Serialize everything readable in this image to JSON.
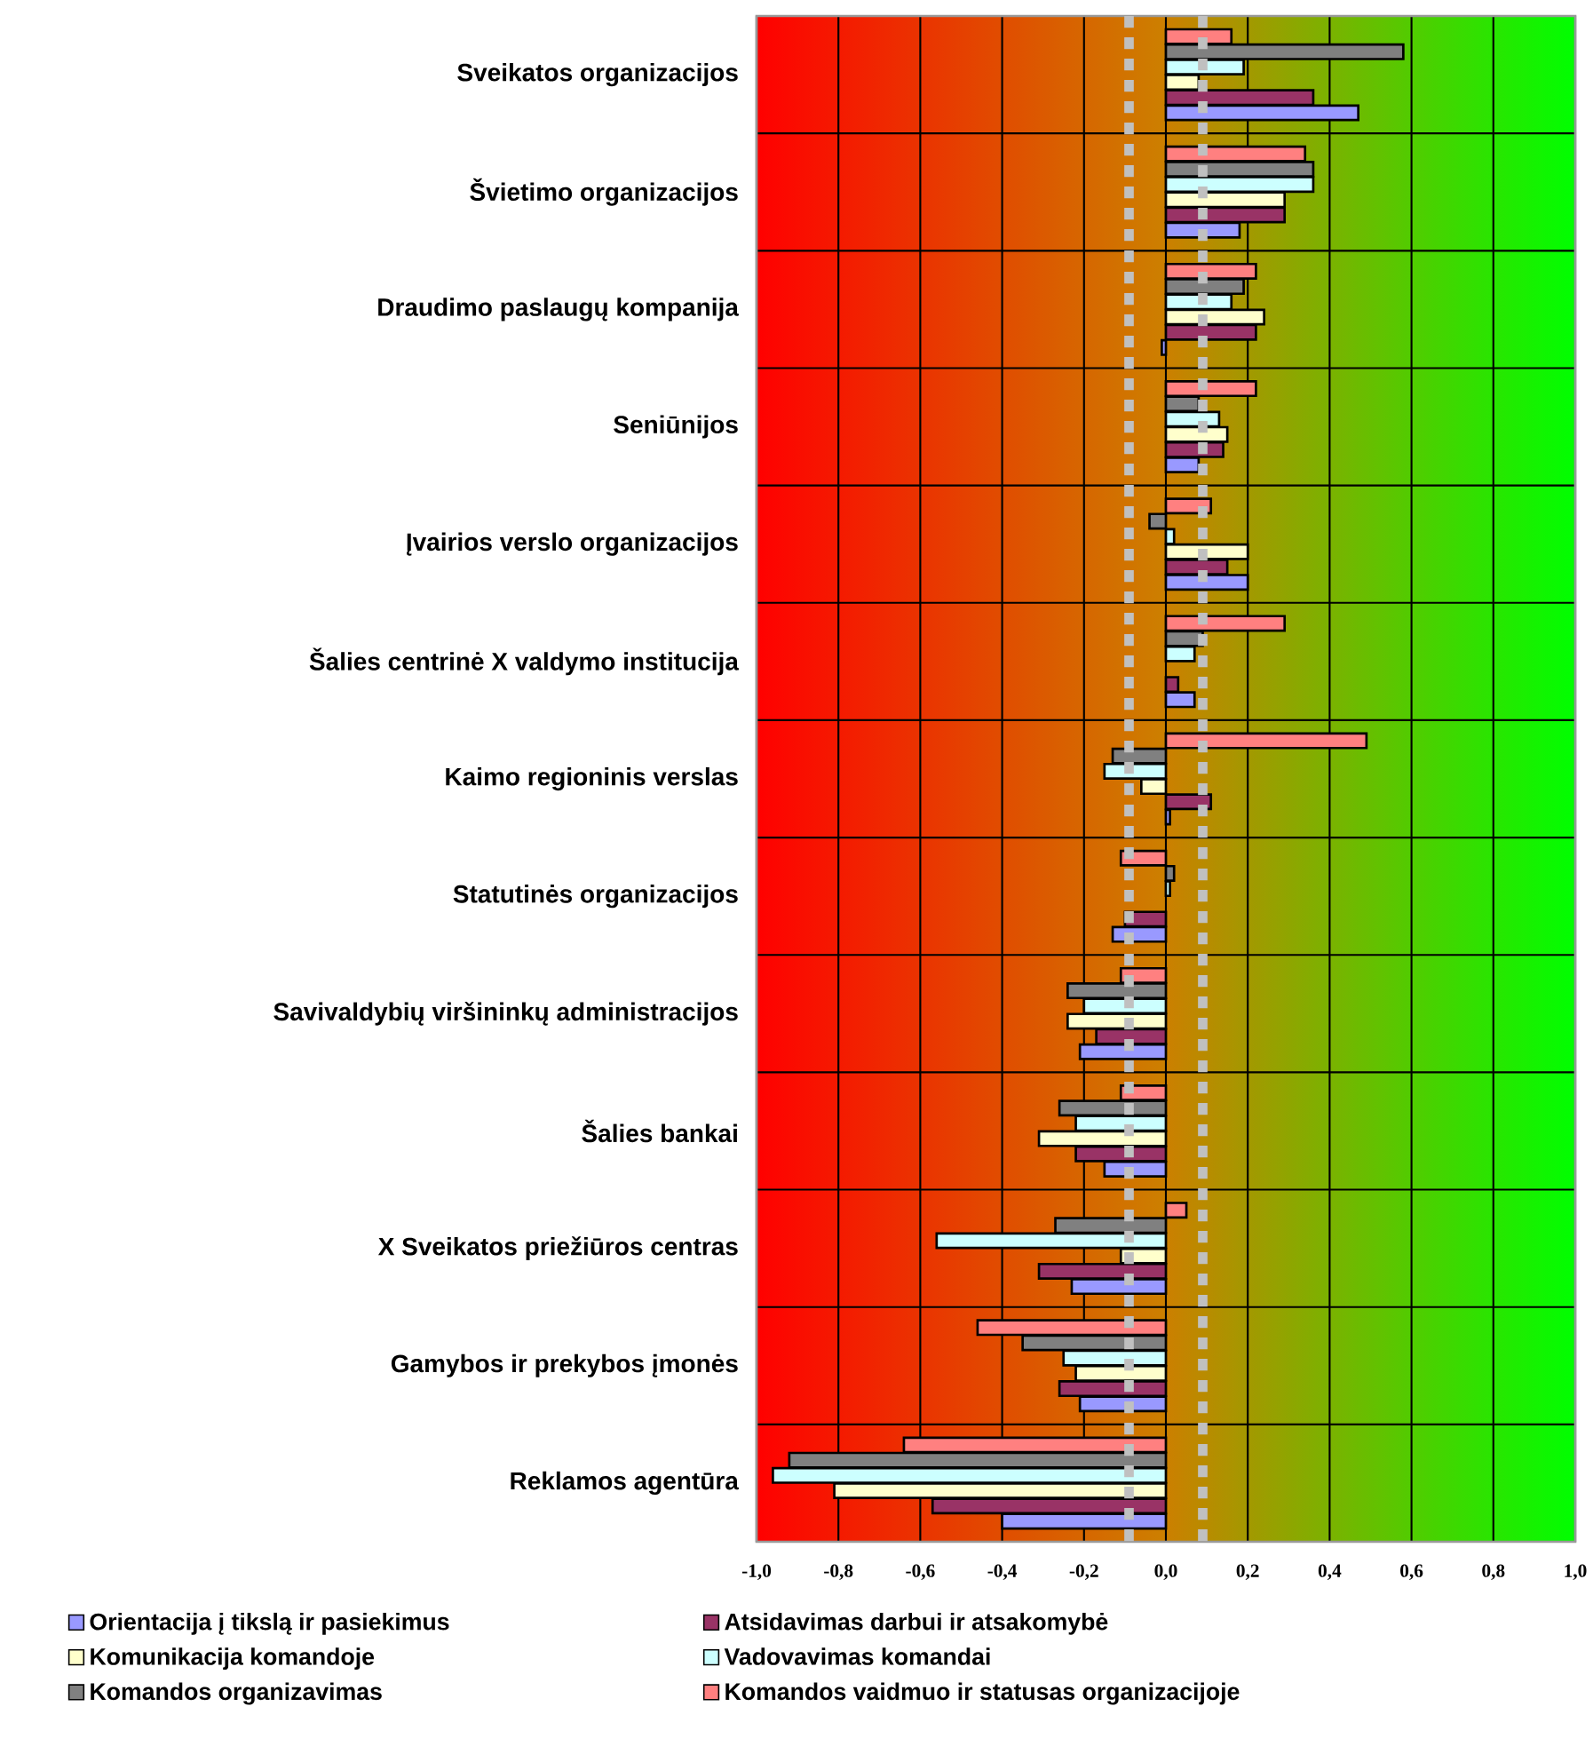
{
  "chart_data": {
    "type": "bar",
    "orientation": "horizontal",
    "categories": [
      "Sveikatos organizacijos",
      "Švietimo organizacijos",
      "Draudimo paslaugų kompanija",
      "Seniūnijos",
      "Įvairios verslo organizacijos",
      "Šalies centrinė X valdymo institucija",
      "Kaimo regioninis verslas",
      "Statutinės organizacijos",
      "Savivaldybių viršininkų administracijos",
      "Šalies bankai",
      "X Sveikatos priežiūros centras",
      "Gamybos ir prekybos įmonės",
      "Reklamos agentūra"
    ],
    "series": [
      {
        "name": "Orientacija į tikslą ir pasiekimus",
        "color": "#9999ff",
        "values": [
          0.47,
          0.18,
          -0.01,
          0.08,
          0.2,
          0.07,
          0.01,
          -0.13,
          -0.21,
          -0.15,
          -0.23,
          -0.21,
          -0.4
        ]
      },
      {
        "name": "Atsidavimas darbui ir atsakomybė",
        "color": "#993366",
        "values": [
          0.36,
          0.29,
          0.22,
          0.14,
          0.15,
          0.03,
          0.11,
          -0.1,
          -0.17,
          -0.22,
          -0.31,
          -0.26,
          -0.57
        ]
      },
      {
        "name": "Komunikacija komandoje",
        "color": "#ffffcc",
        "values": [
          0.08,
          0.29,
          0.24,
          0.15,
          0.2,
          null,
          -0.06,
          null,
          -0.24,
          -0.31,
          -0.11,
          -0.22,
          -0.81
        ]
      },
      {
        "name": "Vadovavimas komandai",
        "color": "#ccffff",
        "values": [
          0.19,
          0.36,
          0.16,
          0.13,
          0.02,
          0.07,
          -0.15,
          0.01,
          -0.2,
          -0.22,
          -0.56,
          -0.25,
          -0.96
        ]
      },
      {
        "name": "Komandos organizavimas",
        "color": "#808080",
        "values": [
          0.58,
          0.36,
          0.19,
          0.08,
          -0.04,
          0.09,
          -0.13,
          0.02,
          -0.24,
          -0.26,
          -0.27,
          -0.35,
          -0.92
        ]
      },
      {
        "name": "Komandos vaidmuo ir statusas organizacijoje",
        "color": "#ff8080",
        "values": [
          0.16,
          0.34,
          0.22,
          0.22,
          0.11,
          0.29,
          0.49,
          -0.11,
          -0.11,
          -0.11,
          0.05,
          -0.46,
          -0.64
        ]
      }
    ],
    "xlim": [
      -1,
      1
    ],
    "xticks": [
      {
        "value": -1,
        "label": "-1,0"
      },
      {
        "value": -0.8,
        "label": "-0,8"
      },
      {
        "value": -0.6,
        "label": "-0,6"
      },
      {
        "value": -0.4,
        "label": "-0,4"
      },
      {
        "value": -0.2,
        "label": "-0,2"
      },
      {
        "value": 0,
        "label": "0,0"
      },
      {
        "value": 0.2,
        "label": "0,2"
      },
      {
        "value": 0.4,
        "label": "0,4"
      },
      {
        "value": 0.6,
        "label": "0,6"
      },
      {
        "value": 0.8,
        "label": "0,8"
      },
      {
        "value": 1,
        "label": "1,0"
      }
    ],
    "ref_lines": [
      {
        "axis": "x",
        "value": -0.09,
        "color": "#c0c0c0",
        "line_style": "dotted"
      },
      {
        "axis": "x",
        "value": 0.09,
        "color": "#c0c0c0",
        "line_style": "dotted"
      }
    ],
    "grid": true,
    "legend": "bottom"
  }
}
